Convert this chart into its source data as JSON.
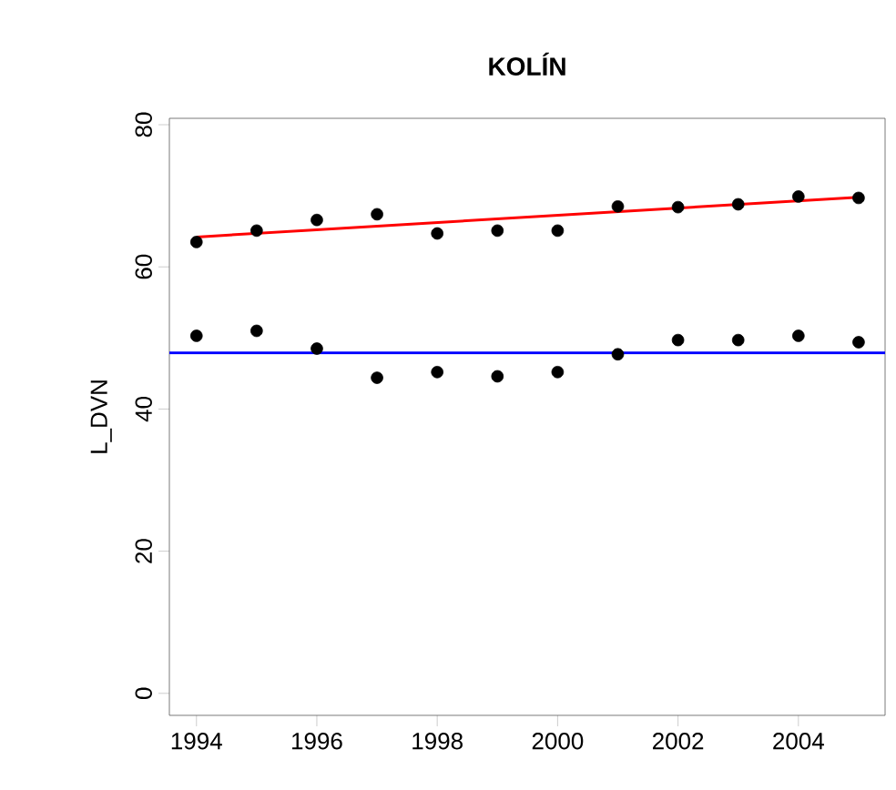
{
  "chart_data": {
    "type": "scatter",
    "title": "KOLÍN",
    "ylabel": "L_DVN",
    "xlim": [
      1993.55,
      2005.44
    ],
    "ylim": [
      -3.1,
      80.9
    ],
    "xticks": [
      1994,
      1996,
      1998,
      2000,
      2002,
      2004
    ],
    "yticks": [
      0,
      20,
      40,
      60,
      80
    ],
    "grid": false,
    "marker": "circle",
    "series": [
      {
        "color": "#000000",
        "x": [
          1994,
          1995,
          1996,
          1997,
          1998,
          1999,
          2000,
          2001,
          2002,
          2003,
          2004,
          2005
        ],
        "values": [
          63.5,
          65.1,
          66.6,
          67.4,
          64.7,
          65.1,
          65.1,
          68.5,
          68.4,
          68.8,
          69.9,
          69.7
        ]
      },
      {
        "color": "#000000",
        "x": [
          1994,
          1995,
          1996,
          1997,
          1998,
          1999,
          2000,
          2001,
          2002,
          2003,
          2004,
          2005
        ],
        "values": [
          50.3,
          51.0,
          48.5,
          44.4,
          45.2,
          44.6,
          45.2,
          47.7,
          49.7,
          49.7,
          50.3,
          49.4
        ]
      },
      {
        "type": "line",
        "marker": "none",
        "color": "#ff0000",
        "x": [
          1994,
          2005
        ],
        "values": [
          64.2,
          69.8
        ]
      }
    ],
    "ref_lines": [
      {
        "axis": "y",
        "value": 47.9,
        "color": "#0000ff"
      }
    ]
  }
}
